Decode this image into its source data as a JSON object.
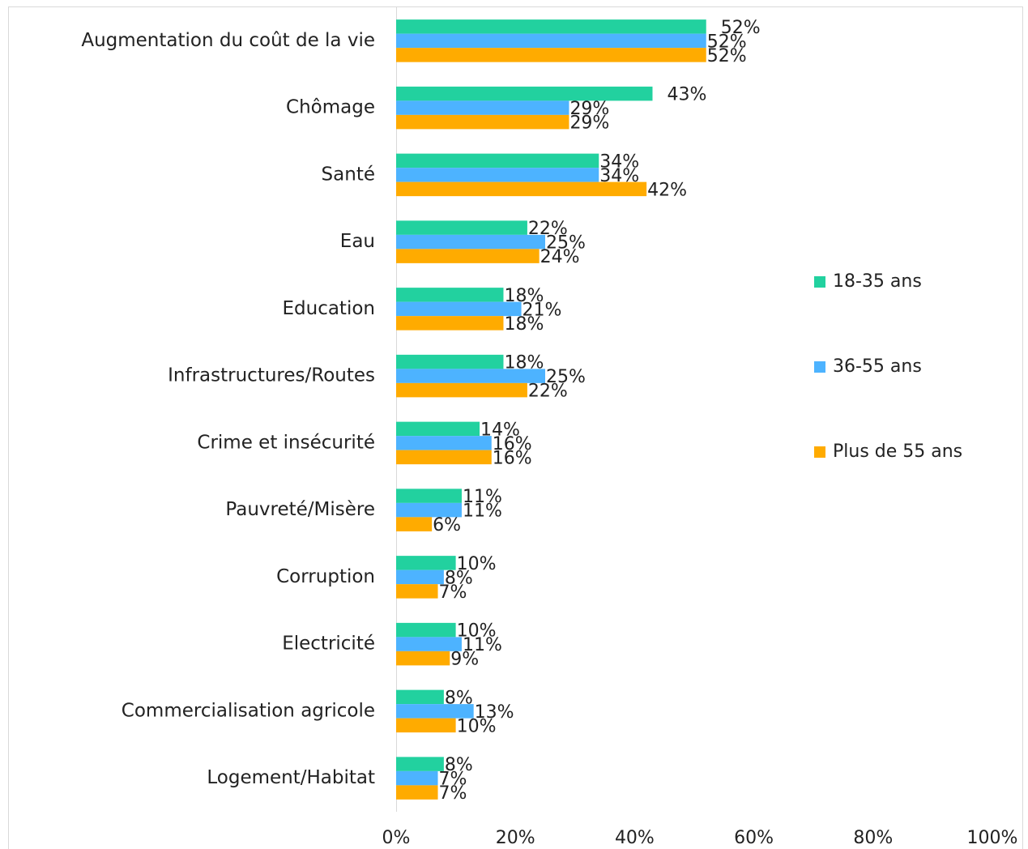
{
  "chart_data": {
    "type": "bar",
    "orientation": "horizontal",
    "categories": [
      "Augmentation du coût de la vie",
      "Chômage",
      "Santé",
      "Eau",
      "Education",
      "Infrastructures/Routes",
      "Crime et insécurité",
      "Pauvreté/Misère",
      "Corruption",
      "Electricité",
      "Commercialisation agricole",
      "Logement/Habitat"
    ],
    "series": [
      {
        "name": "18-35 ans",
        "color": "#22d19f",
        "values": [
          52,
          43,
          34,
          22,
          18,
          18,
          14,
          11,
          10,
          10,
          8,
          8
        ],
        "value_labels": [
          "52%",
          "43%",
          "34%",
          "22%",
          "18%",
          "18%",
          "14%",
          "11%",
          "10%",
          "10%",
          "8%",
          "8%"
        ]
      },
      {
        "name": "36-55 ans",
        "color": "#4db3ff",
        "values": [
          52,
          29,
          34,
          25,
          21,
          25,
          16,
          11,
          8,
          11,
          13,
          7
        ],
        "value_labels": [
          "52%",
          "29%",
          "34%",
          "25%",
          "21%",
          "25%",
          "16%",
          "11%",
          "8%",
          "11%",
          "13%",
          "7%"
        ]
      },
      {
        "name": "Plus de 55 ans",
        "color": "#ffab00",
        "values": [
          52,
          29,
          42,
          24,
          18,
          22,
          16,
          6,
          7,
          9,
          10,
          7
        ],
        "value_labels": [
          "52%",
          "29%",
          "42%",
          "24%",
          "18%",
          "22%",
          "16%",
          "6%",
          "7%",
          "9%",
          "10%",
          "7%"
        ]
      }
    ],
    "xlim": [
      0,
      100
    ],
    "xticks": [
      {
        "value": 0,
        "label": "0%"
      },
      {
        "value": 20,
        "label": "20%"
      },
      {
        "value": 40,
        "label": "40%"
      },
      {
        "value": 60,
        "label": "60%"
      },
      {
        "value": 80,
        "label": "80%"
      },
      {
        "value": 100,
        "label": "100%"
      }
    ],
    "grid": false,
    "legend": "right"
  }
}
